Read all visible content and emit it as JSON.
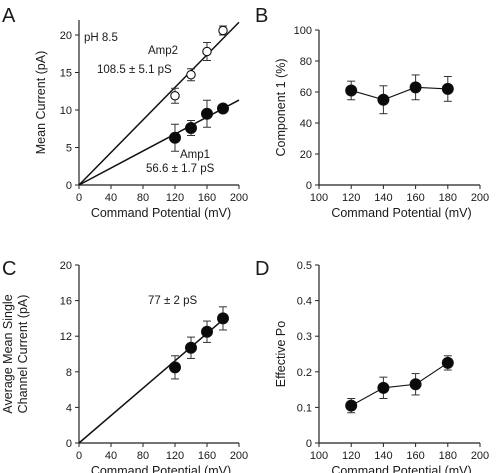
{
  "chart_data": [
    {
      "panel": "A",
      "type": "scatter",
      "xlabel": "Command Potential (mV)",
      "ylabel": "Mean Current (pA)",
      "xlim": [
        0,
        200
      ],
      "ylim": [
        0,
        22
      ],
      "xticks": [
        0,
        40,
        80,
        120,
        160,
        200
      ],
      "yticks": [
        0,
        5,
        10,
        15,
        20
      ],
      "annotation": "pH 8.5",
      "series": [
        {
          "name": "Amp2",
          "label_value": "108.5 ± 5.1 pS",
          "marker": "open",
          "x": [
            120,
            140,
            160,
            180
          ],
          "y": [
            11.9,
            14.7,
            17.8,
            20.6
          ],
          "err": [
            1.0,
            0.8,
            1.2,
            0.6
          ],
          "fit": {
            "slope": 0.1085,
            "x_range": [
              0,
              200
            ]
          }
        },
        {
          "name": "Amp1",
          "label_value": "56.6 ± 1.7 pS",
          "marker": "filled",
          "x": [
            120,
            140,
            160,
            180
          ],
          "y": [
            6.3,
            7.6,
            9.5,
            10.2
          ],
          "err": [
            1.8,
            1.0,
            1.8,
            0.5
          ],
          "fit": {
            "slope": 0.0566,
            "x_range": [
              0,
              200
            ]
          }
        }
      ]
    },
    {
      "panel": "B",
      "type": "line",
      "xlabel": "Command Potential (mV)",
      "ylabel": "Component 1 (%)",
      "xlim": [
        100,
        200
      ],
      "ylim": [
        0,
        100
      ],
      "xticks": [
        100,
        120,
        140,
        160,
        180,
        200
      ],
      "yticks": [
        0,
        20,
        40,
        60,
        80,
        100
      ],
      "series": [
        {
          "x": [
            120,
            140,
            160,
            180
          ],
          "y": [
            61,
            55,
            63,
            62
          ],
          "err": [
            6,
            9,
            8,
            8
          ]
        }
      ]
    },
    {
      "panel": "C",
      "type": "scatter",
      "xlabel": "Command Potential (mV)",
      "ylabel_lines": [
        "Average Mean Single",
        "Channel Current (pA)"
      ],
      "xlim": [
        0,
        200
      ],
      "ylim": [
        0,
        20
      ],
      "xticks": [
        0,
        40,
        80,
        120,
        160,
        200
      ],
      "yticks": [
        0,
        4,
        8,
        12,
        16,
        20
      ],
      "series": [
        {
          "label_value": "77 ± 2 pS",
          "x": [
            120,
            140,
            160,
            180
          ],
          "y": [
            8.5,
            10.7,
            12.5,
            14.0
          ],
          "err": [
            1.3,
            1.2,
            1.2,
            1.3
          ],
          "fit": {
            "slope": 0.077,
            "x_range": [
              0,
              182
            ]
          }
        }
      ]
    },
    {
      "panel": "D",
      "type": "line",
      "xlabel": "Command Potential (mV)",
      "ylabel": "Effective Po",
      "xlim": [
        100,
        200
      ],
      "ylim": [
        0,
        0.5
      ],
      "xticks": [
        100,
        120,
        140,
        160,
        180,
        200
      ],
      "yticks": [
        0,
        0.1,
        0.2,
        0.3,
        0.4,
        0.5
      ],
      "series": [
        {
          "x": [
            120,
            140,
            160,
            180
          ],
          "y": [
            0.105,
            0.155,
            0.165,
            0.225
          ],
          "err": [
            0.02,
            0.03,
            0.03,
            0.02
          ]
        }
      ]
    }
  ]
}
